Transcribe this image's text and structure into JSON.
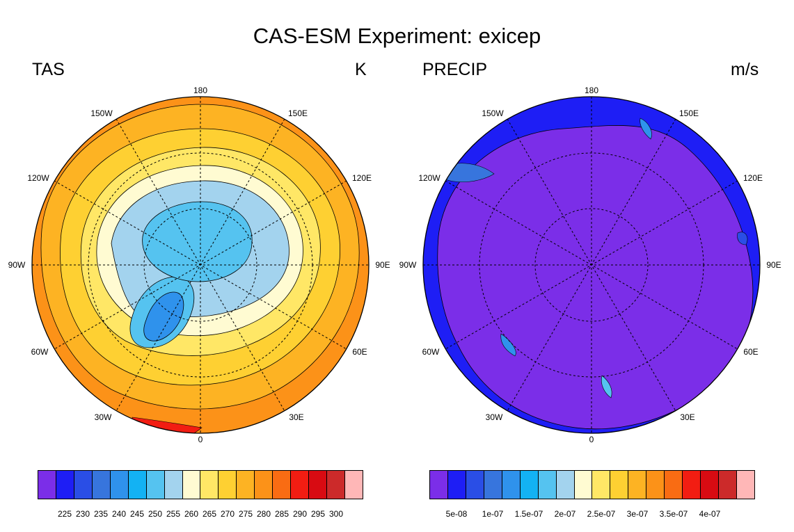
{
  "title": "CAS-ESM Experiment: exicep",
  "panels": [
    {
      "variable": "TAS",
      "units": "K",
      "longitude_labels": [
        "180",
        "150E",
        "120E",
        "90E",
        "60E",
        "30E",
        "0",
        "30W",
        "60W",
        "90W",
        "120W",
        "150W"
      ],
      "colorbar": {
        "colors": [
          "#7b2ee8",
          "#1e1ef5",
          "#2a4ee6",
          "#3775dd",
          "#2f92ec",
          "#13b2f3",
          "#55c3f0",
          "#a3d3ee",
          "#fffbd2",
          "#ffe766",
          "#fed032",
          "#fdb323",
          "#fc9218",
          "#f96c13",
          "#f21d12",
          "#d80b12",
          "#cc2a2a",
          "#ffb7b7"
        ],
        "labels": [
          "225",
          "230",
          "235",
          "240",
          "245",
          "250",
          "255",
          "260",
          "265",
          "270",
          "275",
          "280",
          "285",
          "290",
          "295",
          "300"
        ]
      }
    },
    {
      "variable": "PRECIP",
      "units": "m/s",
      "longitude_labels": [
        "180",
        "150E",
        "120E",
        "90E",
        "60E",
        "30E",
        "0",
        "30W",
        "60W",
        "90W",
        "120W",
        "150W"
      ],
      "colorbar": {
        "colors": [
          "#7b2ee8",
          "#1e1ef5",
          "#2a4ee6",
          "#3775dd",
          "#2f92ec",
          "#13b2f3",
          "#55c3f0",
          "#a3d3ee",
          "#fffbd2",
          "#ffe766",
          "#fed032",
          "#fdb323",
          "#fc9218",
          "#f96c13",
          "#f21d12",
          "#d80b12",
          "#cc2a2a",
          "#ffb7b7"
        ],
        "labels": [
          "5e-08",
          "1e-07",
          "1.5e-07",
          "2e-07",
          "2.5e-07",
          "3e-07",
          "3.5e-07",
          "4e-07"
        ]
      }
    }
  ]
}
